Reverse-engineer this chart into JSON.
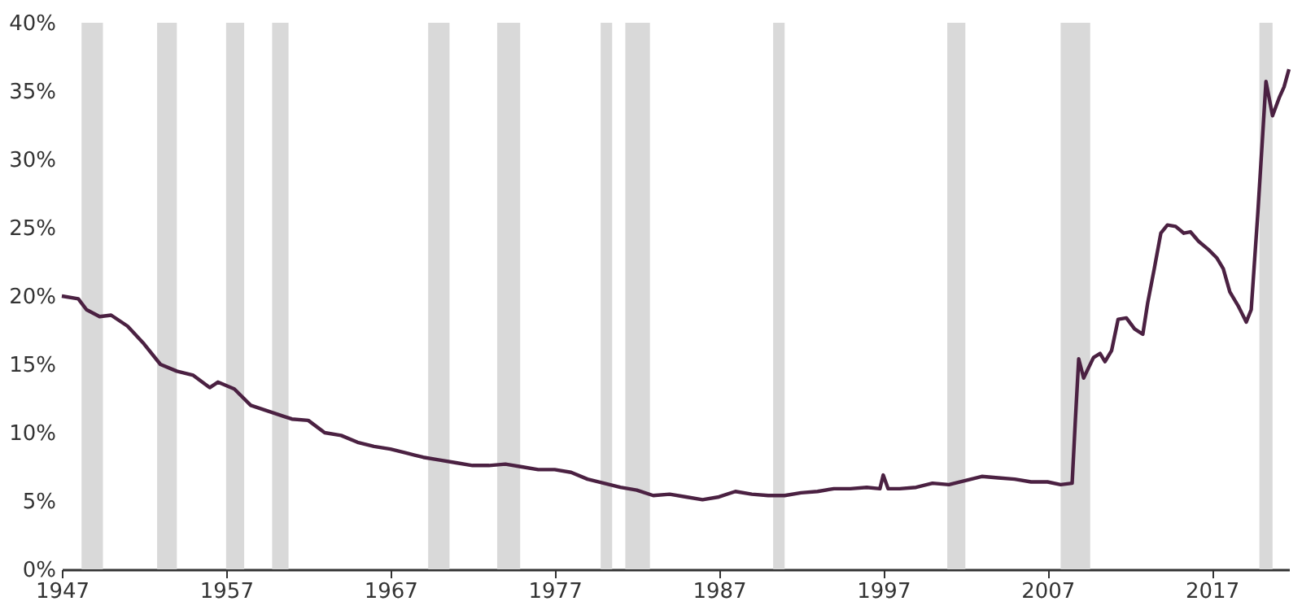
{
  "chart_data": {
    "type": "line",
    "x": [
      1947.0,
      1948.0,
      1948.5,
      1949.3,
      1950.0,
      1951.0,
      1952.0,
      1953.0,
      1954.0,
      1955.0,
      1956.0,
      1956.5,
      1957.5,
      1958.5,
      1959.5,
      1960.5,
      1961.0,
      1962.0,
      1963.0,
      1964.0,
      1965.0,
      1966.0,
      1967.0,
      1968.0,
      1969.0,
      1970.0,
      1971.0,
      1972.0,
      1973.0,
      1974.0,
      1975.0,
      1976.0,
      1977.0,
      1978.0,
      1979.0,
      1980.0,
      1981.0,
      1982.0,
      1983.0,
      1984.0,
      1985.0,
      1986.0,
      1987.0,
      1988.0,
      1989.0,
      1990.0,
      1991.0,
      1992.0,
      1993.0,
      1994.0,
      1995.0,
      1996.0,
      1996.8,
      1997.0,
      1997.3,
      1998.0,
      1999.0,
      2000.0,
      2001.0,
      2002.0,
      2003.0,
      2004.0,
      2005.0,
      2006.0,
      2007.0,
      2007.8,
      2008.5,
      2008.7,
      2008.9,
      2009.2,
      2009.8,
      2010.2,
      2010.5,
      2010.9,
      2011.3,
      2011.8,
      2012.3,
      2012.8,
      2013.1,
      2013.5,
      2013.9,
      2014.3,
      2014.8,
      2015.3,
      2015.7,
      2016.2,
      2016.8,
      2017.3,
      2017.7,
      2018.1,
      2018.6,
      2019.1,
      2019.4,
      2019.8,
      2020.3,
      2020.7,
      2021.1,
      2021.4,
      2021.7
    ],
    "series": [
      {
        "color": "#4b2142",
        "values": [
          20.0,
          19.8,
          19.0,
          18.5,
          18.6,
          17.8,
          16.5,
          15.0,
          14.5,
          14.2,
          13.3,
          13.7,
          13.2,
          12.0,
          11.6,
          11.2,
          11.0,
          10.9,
          10.0,
          9.8,
          9.3,
          9.0,
          8.8,
          8.5,
          8.2,
          8.0,
          7.8,
          7.6,
          7.6,
          7.7,
          7.5,
          7.3,
          7.3,
          7.1,
          6.6,
          6.3,
          6.0,
          5.8,
          5.4,
          5.5,
          5.3,
          5.1,
          5.3,
          5.7,
          5.5,
          5.4,
          5.4,
          5.6,
          5.7,
          5.9,
          5.9,
          6.0,
          5.9,
          6.9,
          5.9,
          5.9,
          6.0,
          6.3,
          6.2,
          6.5,
          6.8,
          6.7,
          6.6,
          6.4,
          6.4,
          6.2,
          6.3,
          11.0,
          15.4,
          14.0,
          15.5,
          15.8,
          15.2,
          16.0,
          18.3,
          18.4,
          17.6,
          17.2,
          19.5,
          22.0,
          24.6,
          25.2,
          25.1,
          24.6,
          24.7,
          24.0,
          23.4,
          22.8,
          22.0,
          20.3,
          19.3,
          18.1,
          19.0,
          26.0,
          35.7,
          33.2,
          34.5,
          35.3,
          36.6
        ]
      }
    ],
    "xlim": [
      1947,
      2021.7
    ],
    "xticks": [
      1947,
      1957,
      1967,
      1977,
      1987,
      1997,
      2007,
      2017
    ],
    "ylim": [
      0,
      40
    ],
    "yticks": [
      {
        "value": 0,
        "label": "0%"
      },
      {
        "value": 5,
        "label": "5%"
      },
      {
        "value": 10,
        "label": "10%"
      },
      {
        "value": 15,
        "label": "15%"
      },
      {
        "value": 20,
        "label": "20%"
      },
      {
        "value": 25,
        "label": "25%"
      },
      {
        "value": 30,
        "label": "30%"
      },
      {
        "value": 35,
        "label": "35%"
      },
      {
        "value": 40,
        "label": "40%"
      }
    ],
    "bands": [
      {
        "axis": "x",
        "from": 1948.2,
        "to": 1949.5,
        "color": "#d9d9d9"
      },
      {
        "axis": "x",
        "from": 1952.8,
        "to": 1954.0,
        "color": "#d9d9d9"
      },
      {
        "axis": "x",
        "from": 1957.0,
        "to": 1958.1,
        "color": "#d9d9d9"
      },
      {
        "axis": "x",
        "from": 1959.8,
        "to": 1960.8,
        "color": "#d9d9d9"
      },
      {
        "axis": "x",
        "from": 1969.3,
        "to": 1970.6,
        "color": "#d9d9d9"
      },
      {
        "axis": "x",
        "from": 1973.5,
        "to": 1974.9,
        "color": "#d9d9d9"
      },
      {
        "axis": "x",
        "from": 1979.8,
        "to": 1980.5,
        "color": "#d9d9d9"
      },
      {
        "axis": "x",
        "from": 1981.3,
        "to": 1982.8,
        "color": "#d9d9d9"
      },
      {
        "axis": "x",
        "from": 1990.3,
        "to": 1991.0,
        "color": "#d9d9d9"
      },
      {
        "axis": "x",
        "from": 2000.9,
        "to": 2002.0,
        "color": "#d9d9d9"
      },
      {
        "axis": "x",
        "from": 2007.8,
        "to": 2009.6,
        "color": "#d9d9d9"
      },
      {
        "axis": "x",
        "from": 2019.9,
        "to": 2020.7,
        "color": "#d9d9d9"
      }
    ],
    "grid": false,
    "marker": "none",
    "line_style": "solid"
  }
}
